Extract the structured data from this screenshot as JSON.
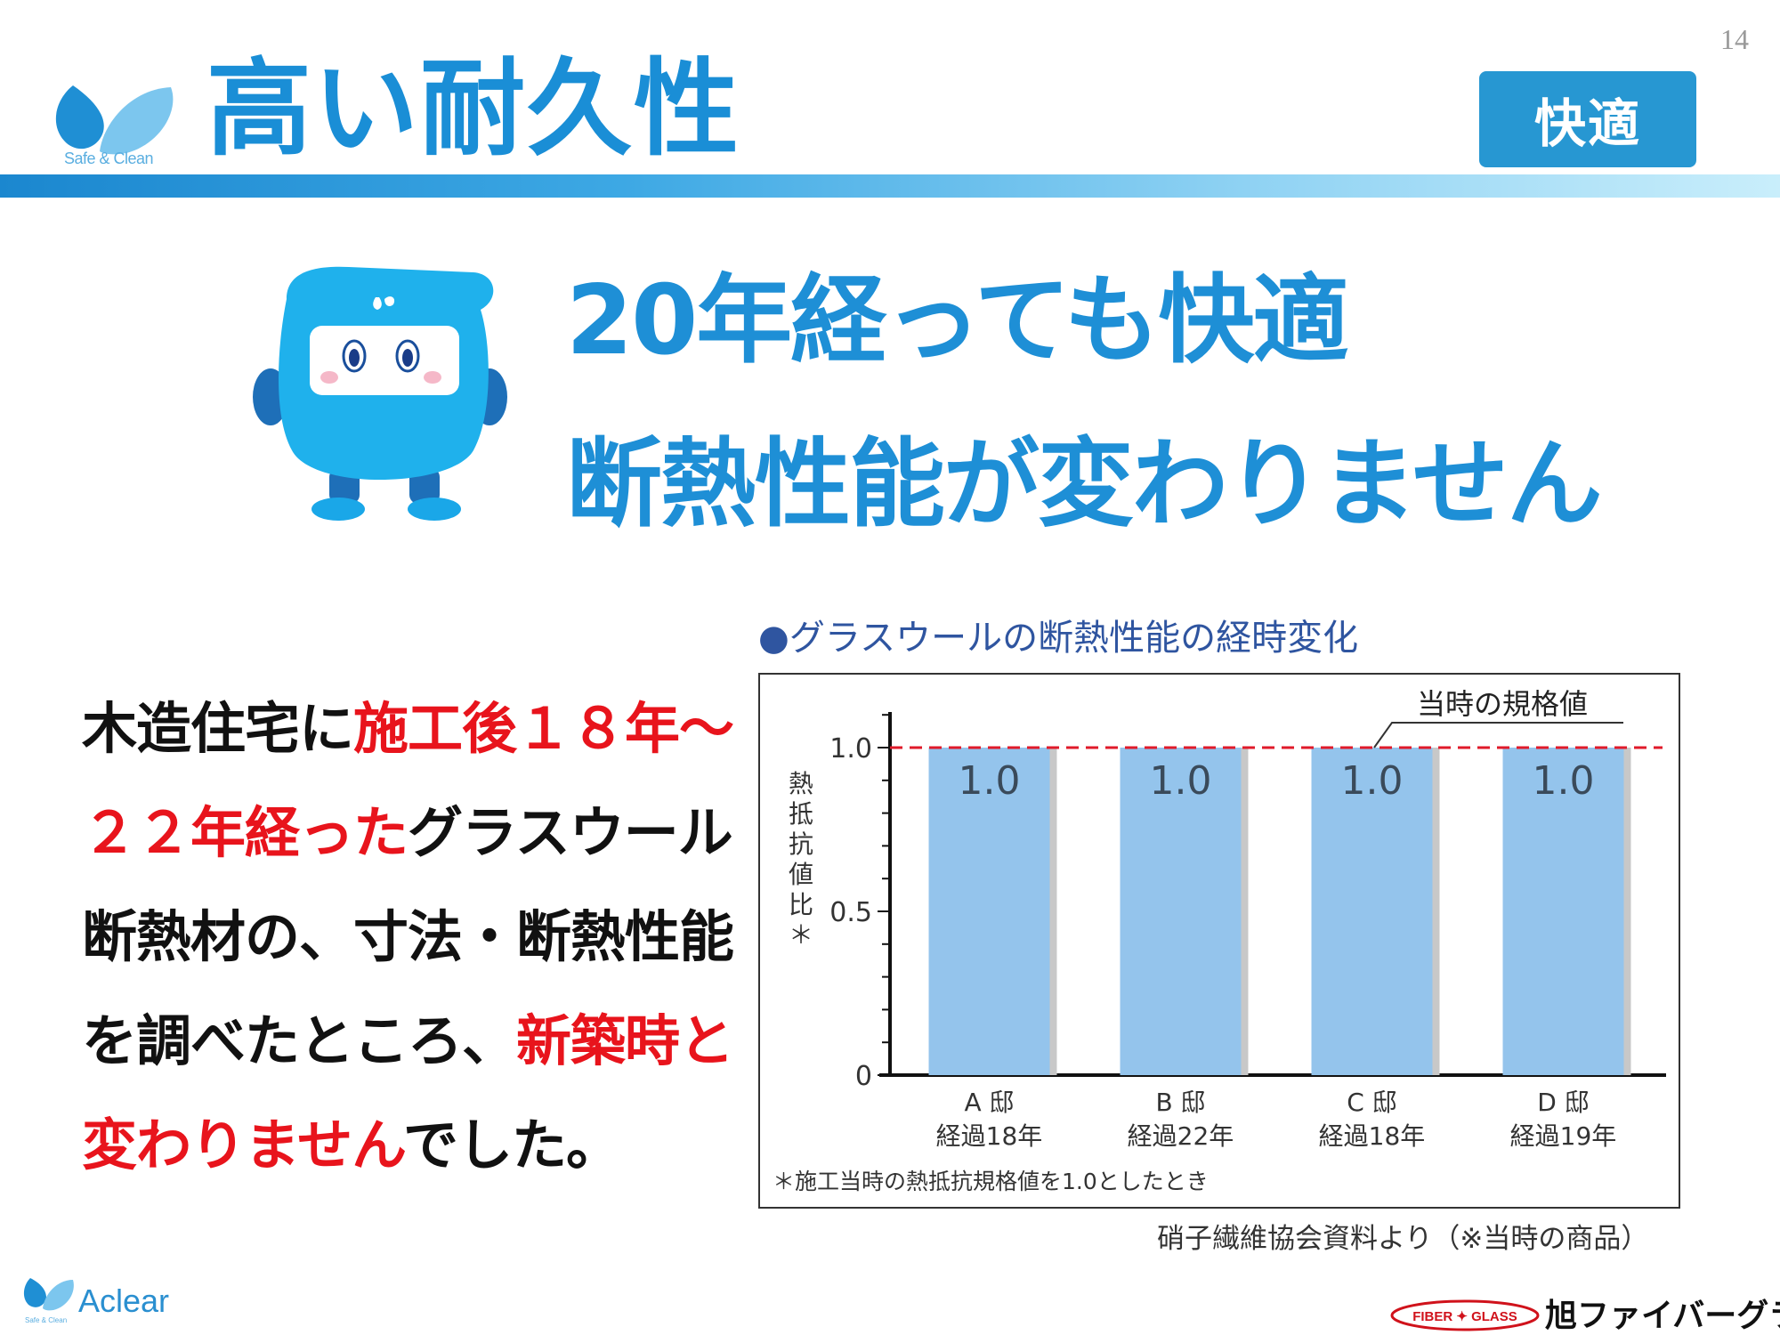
{
  "header": {
    "logo_caption": "Safe & Clean",
    "title": "高い耐久性",
    "page_number": "14",
    "badge": "快適"
  },
  "headline": {
    "line1": "20年経っても快適",
    "line2": "断熱性能が変わりません"
  },
  "description": {
    "p1": "木造住宅に",
    "p2": "施工後１８年～２２年経った",
    "p3": "グラスウール断熱材の、寸法・断熱性能を調べたところ、",
    "p4": "新築時と変わりません",
    "p5": "でした。"
  },
  "chart_caption": "●グラスウールの断熱性能の経時変化",
  "chart_data": {
    "type": "bar",
    "categories": [
      "A 邸",
      "B 邸",
      "C 邸",
      "D 邸"
    ],
    "subcategories": [
      "経過18年",
      "経過22年",
      "経過18年",
      "経過19年"
    ],
    "values": [
      1.0,
      1.0,
      1.0,
      1.0
    ],
    "value_labels": [
      "1.0",
      "1.0",
      "1.0",
      "1.0"
    ],
    "ylabel": "熱抵抗値比＊",
    "ylim": [
      0,
      1.1
    ],
    "yticks": [
      0,
      0.5,
      1.0
    ],
    "ytick_labels": [
      "0",
      "0.5",
      "1.0"
    ],
    "reference_line": {
      "value": 1.0,
      "label": "当時の規格値",
      "color": "#e01a2a"
    },
    "footnote": "＊施工当時の熱抵抗規格値を1.0としたとき",
    "bar_color": "#94c4ec",
    "bar_shadow_color": "#c8c8c8",
    "grid": false
  },
  "source_note": "硝子繊維協会資料より（※当時の商品）",
  "footer": {
    "logo_text": "Aclear",
    "logo_small": "Safe & Clean",
    "brand_badge": "FIBER ✦ GLASS",
    "brand_name": "旭ファイバーグラス"
  },
  "colors": {
    "title_blue": "#1a8ed6",
    "accent_red": "#e8141c",
    "badge_blue": "#2797d2"
  }
}
